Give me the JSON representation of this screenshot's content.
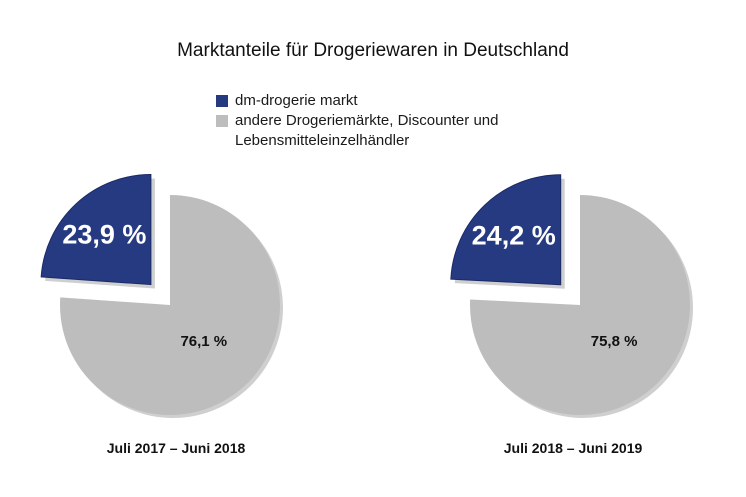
{
  "chart_data": [
    {
      "type": "pie",
      "title": "Marktanteile für Drogeriewaren in Deutschland",
      "period_label": "Juli 2017 – Juni 2018",
      "slices": [
        {
          "name": "dm-drogerie markt",
          "value": 23.9,
          "label": "23,9 %",
          "color": "#263a82",
          "exploded": true
        },
        {
          "name": "andere Drogeriemärkte, Discounter und Lebensmitteleinzelhändler",
          "value": 76.1,
          "label": "76,1 %",
          "color": "#bdbdbd",
          "exploded": false
        }
      ]
    },
    {
      "type": "pie",
      "title": "Marktanteile für Drogeriewaren in Deutschland",
      "period_label": "Juli 2018 – Juni 2019",
      "slices": [
        {
          "name": "dm-drogerie markt",
          "value": 24.2,
          "label": "24,2 %",
          "color": "#263a82",
          "exploded": true
        },
        {
          "name": "andere Drogeriemärkte, Discounter und Lebensmitteleinzelhändler",
          "value": 75.8,
          "label": "75,8 %",
          "color": "#bdbdbd",
          "exploded": false
        }
      ]
    }
  ],
  "title": "Marktanteile für Drogeriewaren in Deutschland",
  "legend": [
    {
      "label": "dm-drogerie markt",
      "color": "#263a82"
    },
    {
      "label_line1": "andere Drogeriemärkte, Discounter und",
      "label_line2": "Lebensmitteleinzelhändler",
      "color": "#bdbdbd"
    }
  ],
  "colors": {
    "dm": "#263a82",
    "others": "#bdbdbd",
    "shadow": "#cfcfcf"
  }
}
